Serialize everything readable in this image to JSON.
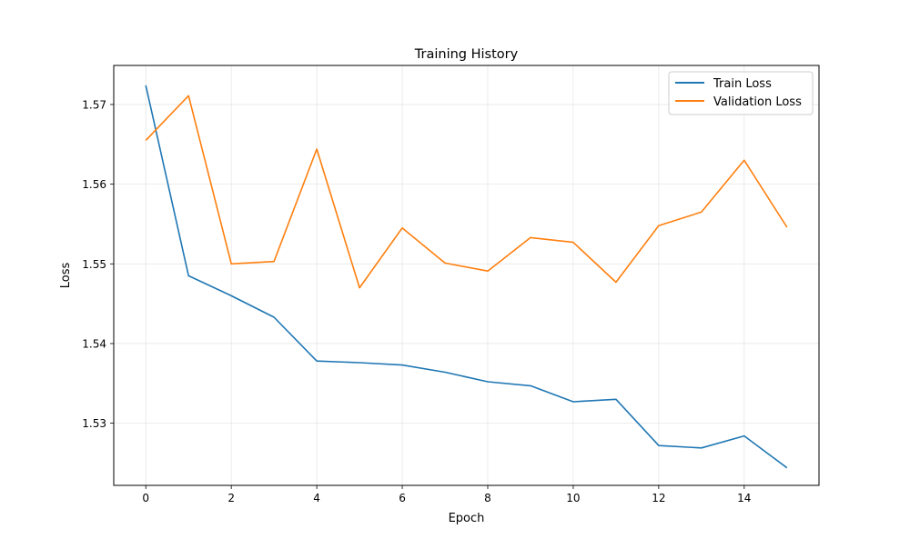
{
  "chart_data": {
    "type": "line",
    "title": "Training History",
    "xlabel": "Epoch",
    "ylabel": "Loss",
    "xlim": [
      -0.75,
      15.75
    ],
    "ylim": [
      1.5222,
      1.5749
    ],
    "xticks": [
      0,
      2,
      4,
      6,
      8,
      10,
      12,
      14
    ],
    "yticks": [
      1.53,
      1.54,
      1.55,
      1.56,
      1.57
    ],
    "grid": true,
    "legend_position": "top-right",
    "x": [
      0,
      1,
      2,
      3,
      4,
      5,
      6,
      7,
      8,
      9,
      10,
      11,
      12,
      13,
      14,
      15
    ],
    "series": [
      {
        "name": "Train Loss",
        "color": "#1f77b4",
        "values": [
          1.5724,
          1.5485,
          1.546,
          1.5433,
          1.5378,
          1.5376,
          1.5373,
          1.5364,
          1.5352,
          1.5347,
          1.5327,
          1.533,
          1.5272,
          1.5269,
          1.5284,
          1.5244
        ]
      },
      {
        "name": "Validation Loss",
        "color": "#ff7f0e",
        "values": [
          1.5655,
          1.5711,
          1.55,
          1.5503,
          1.5644,
          1.547,
          1.5545,
          1.5501,
          1.5491,
          1.5533,
          1.5527,
          1.5477,
          1.5548,
          1.5565,
          1.563,
          1.5546
        ]
      }
    ]
  }
}
